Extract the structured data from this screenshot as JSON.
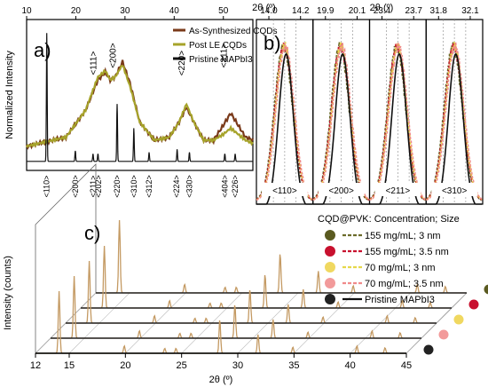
{
  "chart_data": [
    {
      "type": "line",
      "panel_label": "a)",
      "x_title": "2θ (º)",
      "y_title": "Normalized Intensity",
      "xlim": [
        10,
        56
      ],
      "x_ticks": [
        "10",
        "20",
        "30",
        "40",
        "50"
      ],
      "series": [
        {
          "name": "As-Synthesized CQDs",
          "color": "#7a3a1a",
          "x": [
            10,
            18,
            22,
            24.5,
            26,
            27,
            28,
            29.5,
            31,
            33,
            36,
            39,
            41,
            42.5,
            44,
            46,
            48,
            50,
            51.5,
            53,
            54.5,
            56
          ],
          "y": [
            0.16,
            0.22,
            0.4,
            0.6,
            0.65,
            0.6,
            0.62,
            0.72,
            0.58,
            0.32,
            0.2,
            0.22,
            0.32,
            0.42,
            0.32,
            0.2,
            0.2,
            0.3,
            0.38,
            0.3,
            0.22,
            0.2
          ]
        },
        {
          "name": "Post LE CQDs",
          "color": "#a6a32a",
          "x": [
            10,
            18,
            22,
            24.5,
            26,
            27,
            28,
            29.5,
            31,
            33,
            36,
            39,
            41,
            42.5,
            44,
            46,
            48,
            50,
            51.5,
            53,
            54.5,
            56
          ],
          "y": [
            0.16,
            0.22,
            0.4,
            0.62,
            0.66,
            0.6,
            0.62,
            0.7,
            0.56,
            0.32,
            0.2,
            0.22,
            0.32,
            0.44,
            0.32,
            0.2,
            0.2,
            0.24,
            0.28,
            0.24,
            0.2,
            0.18
          ]
        },
        {
          "name": "Pristine MAPbI3",
          "color": "#111111",
          "peaks": [
            14.1,
            19.9,
            23.5,
            24.5,
            28.4,
            31.8,
            34.9,
            40.6,
            43.1,
            50.3,
            52.4
          ],
          "heights": [
            0.85,
            0.07,
            0.05,
            0.05,
            0.38,
            0.22,
            0.06,
            0.08,
            0.06,
            0.05,
            0.05
          ]
        }
      ],
      "peak_labels_top": [
        {
          "label": "<111>",
          "x": 24.5
        },
        {
          "label": "<200>",
          "x": 28.5
        },
        {
          "label": "<220>",
          "x": 42.5
        },
        {
          "label": "<311>",
          "x": 51.0
        }
      ],
      "peak_labels_bottom": [
        {
          "label": "<110>",
          "x": 14.1
        },
        {
          "label": "<200>",
          "x": 19.9
        },
        {
          "label": "<211>",
          "x": 23.5
        },
        {
          "label": "<202>",
          "x": 24.6
        },
        {
          "label": "<220>",
          "x": 28.4
        },
        {
          "label": "<310>",
          "x": 31.8
        },
        {
          "label": "<312>",
          "x": 34.9
        },
        {
          "label": "<224>",
          "x": 40.5
        },
        {
          "label": "<330>",
          "x": 43.1
        },
        {
          "label": "<404>",
          "x": 50.3
        },
        {
          "label": "<226>",
          "x": 52.4
        }
      ]
    },
    {
      "type": "line",
      "panel_label": "b)",
      "x_title": "2θ (º)",
      "subpanels": [
        {
          "label": "<110>",
          "ticks": [
            "14.0",
            "14.2"
          ],
          "range": [
            13.9,
            14.3
          ],
          "center": 14.1
        },
        {
          "label": "<200>",
          "ticks": [
            "19.9",
            "20.1"
          ],
          "range": [
            19.8,
            20.2
          ],
          "center": 20.0
        },
        {
          "label": "<211>",
          "ticks": [
            "23.4",
            "23.7"
          ],
          "range": [
            23.3,
            23.8
          ],
          "center": 23.55
        },
        {
          "label": "<310>",
          "ticks": [
            "31.8",
            "32.1"
          ],
          "range": [
            31.7,
            32.2
          ],
          "center": 31.95
        }
      ],
      "series": [
        {
          "name": "155 mg/mL; 3 nm",
          "color": "#6b6b2a"
        },
        {
          "name": "155 mg/mL; 3.5 nm",
          "color": "#c8102e"
        },
        {
          "name": "70 mg/mL; 3 nm",
          "color": "#e6d84a"
        },
        {
          "name": "70 mg/mL; 3.5 nm",
          "color": "#f08a8a"
        },
        {
          "name": "Pristine MAPbI3",
          "color": "#111111"
        }
      ]
    },
    {
      "type": "line",
      "panel_label": "c)",
      "x_title": "2θ (º)",
      "y_title": "Intensity (counts)",
      "xlim": [
        12,
        45
      ],
      "x_ticks": [
        "12",
        "15",
        "20",
        "25",
        "30",
        "35",
        "40",
        "45"
      ],
      "legend_title": "CQD@PVK: Concentration; Size",
      "peaks": [
        14.1,
        19.9,
        23.5,
        24.5,
        28.4,
        31.8,
        34.9,
        40.6,
        43.1
      ],
      "heights": [
        1.0,
        0.12,
        0.08,
        0.08,
        0.55,
        0.3,
        0.1,
        0.12,
        0.09
      ],
      "series": [
        {
          "name": "155 mg/mL; 3 nm",
          "color": "#6b6b2a",
          "marker": "#5a5a20"
        },
        {
          "name": "155 mg/mL; 3.5 nm",
          "color": "#c8102e",
          "marker": "#c8102e"
        },
        {
          "name": "70 mg/mL; 3 nm",
          "color": "#e6d84a",
          "marker": "#f0d860"
        },
        {
          "name": "70 mg/mL; 3.5 nm",
          "color": "#f08a8a",
          "marker": "#f29a9a"
        },
        {
          "name": "Pristine MAPbI3",
          "color": "#111111",
          "marker": "#222222"
        }
      ]
    }
  ]
}
